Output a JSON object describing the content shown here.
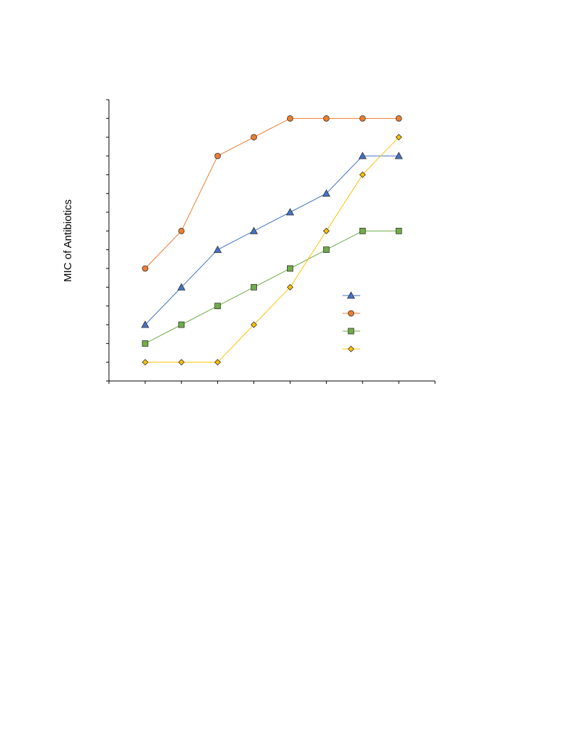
{
  "chart_data": {
    "type": "line",
    "title": "",
    "xlabel": "",
    "ylabel": "MIC of Antibiotics",
    "x": [
      1,
      2,
      3,
      4,
      5,
      6,
      7,
      8
    ],
    "xlim": [
      0,
      9
    ],
    "ylim": [
      0,
      15
    ],
    "grid": false,
    "legend_placement": "bottom-right",
    "series": [
      {
        "values": [
          3,
          5,
          7,
          8,
          9,
          10,
          12,
          12
        ],
        "marker": "triangle",
        "color": "#4472C4"
      },
      {
        "values": [
          6,
          8,
          12,
          13,
          14,
          14,
          14,
          14
        ],
        "marker": "circle",
        "color": "#ED7D31"
      },
      {
        "values": [
          2,
          3,
          4,
          5,
          6,
          7,
          8,
          8
        ],
        "marker": "square",
        "color": "#70AD47"
      },
      {
        "values": [
          1,
          1,
          1,
          3,
          5,
          8,
          11,
          13
        ],
        "marker": "diamond",
        "color": "#FFC000"
      }
    ]
  }
}
